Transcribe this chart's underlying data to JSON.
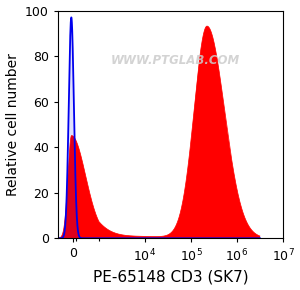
{
  "title": "",
  "xlabel": "PE-65148 CD3 (SK7)",
  "ylabel": "Relative cell number",
  "ylim": [
    0,
    100
  ],
  "watermark": "WWW.PTGLAB.COM",
  "background_color": "#ffffff",
  "blue_color": "#0000ee",
  "red_fill_color": "#ff0000",
  "red_line_color": "#cc0000",
  "xlabel_fontsize": 11,
  "ylabel_fontsize": 10,
  "tick_fontsize": 9,
  "linthresh": 1000,
  "linscale": 0.5
}
